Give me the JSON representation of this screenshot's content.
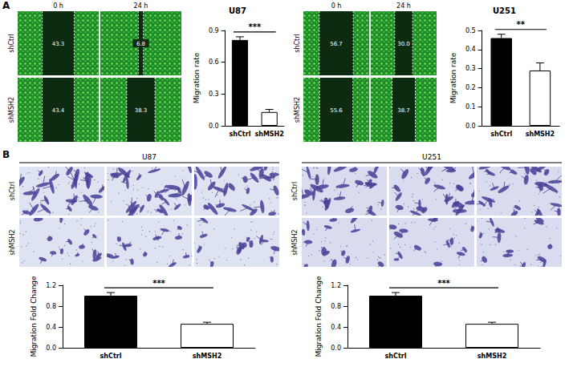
{
  "figure": {
    "panel_labels": [
      "A",
      "B"
    ],
    "wound_healing": [
      {
        "cell_line": "U87",
        "columns": [
          "0 h",
          "24 h"
        ],
        "rows": [
          {
            "label": "shCtrl",
            "widths": [
              "43.3",
              "6.8"
            ]
          },
          {
            "label": "shMSH2",
            "widths": [
              "43.4",
              "38.3"
            ]
          }
        ]
      },
      {
        "cell_line": "U251",
        "columns": [
          "0 h",
          "24 h"
        ],
        "rows": [
          {
            "label": "shCtrl",
            "widths": [
              "56.7",
              "30.0"
            ]
          },
          {
            "label": "shMSH2",
            "widths": [
              "55.6",
              "38.7"
            ]
          }
        ]
      }
    ],
    "transwell": [
      {
        "cell_line": "U87",
        "rows": [
          "shCtrl",
          "shMSH2"
        ]
      },
      {
        "cell_line": "U251",
        "rows": [
          "shCtrl",
          "shMSH2"
        ]
      }
    ]
  },
  "chart_data": [
    {
      "type": "bar",
      "title": "U87",
      "y_label": "Migration rate",
      "categories": [
        "shCtrl",
        "shMSH2"
      ],
      "values": [
        0.81,
        0.13
      ],
      "errors": [
        0.03,
        0.025
      ],
      "colors": [
        "#000000",
        "#ffffff"
      ],
      "ylim": [
        0,
        0.9
      ],
      "yticks": [
        {
          "value": 0,
          "label": "0.0"
        },
        0.3,
        0.6,
        0.9
      ],
      "grid": false,
      "annotation": "***"
    },
    {
      "type": "bar",
      "title": "U251",
      "y_label": "Migration rate",
      "categories": [
        "shCtrl",
        "shMSH2"
      ],
      "values": [
        0.46,
        0.29
      ],
      "errors": [
        0.02,
        0.04
      ],
      "colors": [
        "#000000",
        "#ffffff"
      ],
      "ylim": [
        0,
        0.5
      ],
      "yticks": [
        {
          "value": 0,
          "label": "0.0"
        },
        0.1,
        0.2,
        0.3,
        0.4,
        0.5
      ],
      "grid": false,
      "annotation": "**"
    },
    {
      "type": "bar",
      "y_label": "Migration Fold Change",
      "categories": [
        "shCtrl",
        "shMSH2"
      ],
      "values": [
        1.0,
        0.46
      ],
      "errors": [
        0.06,
        0.03
      ],
      "colors": [
        "#000000",
        "#ffffff"
      ],
      "ylim": [
        0,
        1.2
      ],
      "yticks": [
        {
          "value": 0,
          "label": "0.0"
        },
        0.4,
        0.8,
        1.2
      ],
      "grid": false,
      "annotation": "***"
    },
    {
      "type": "bar",
      "y_label": "Migration Fold Change",
      "categories": [
        "shCtrl",
        "shMSH2"
      ],
      "values": [
        1.0,
        0.46
      ],
      "errors": [
        0.06,
        0.03
      ],
      "colors": [
        "#000000",
        "#ffffff"
      ],
      "ylim": [
        0,
        1.2
      ],
      "yticks": [
        {
          "value": 0,
          "label": "0.0"
        },
        0.4,
        0.8,
        1.2
      ],
      "grid": false,
      "annotation": "***"
    }
  ]
}
